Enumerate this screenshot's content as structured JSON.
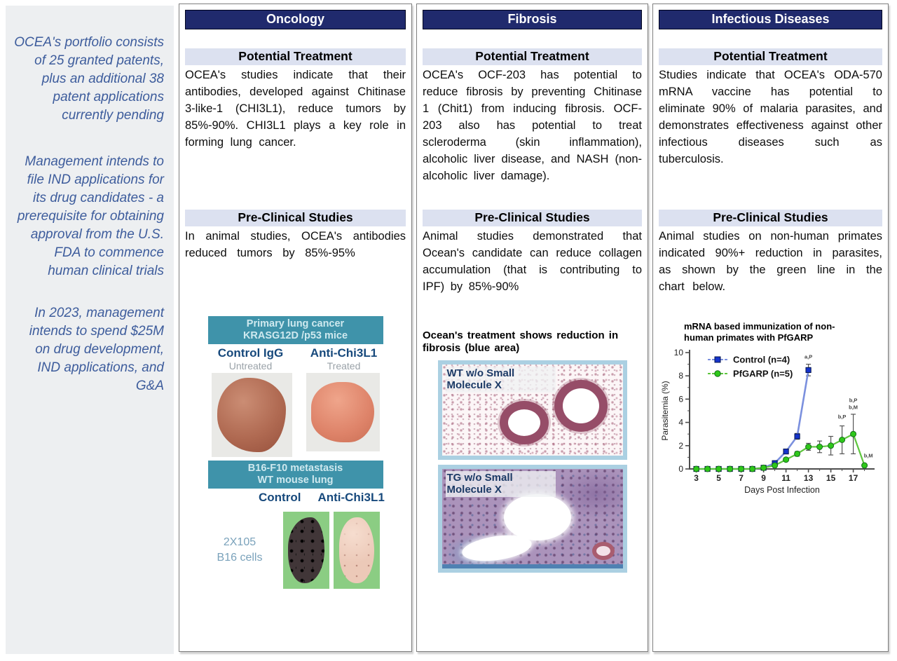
{
  "colors": {
    "navy": "#202a6d",
    "section_bar": "#dce1f0",
    "teal": "#3f93aa",
    "teal_text": "#cfe9ef",
    "label_blue": "#17497c",
    "sub_gray": "#9aa2a8",
    "sidebar_text": "#3d5c9c",
    "green_bg": "#8bcd83",
    "control_blue": "#1533cc",
    "pfgarp_green": "#2ec819"
  },
  "sidebar": {
    "notes": [
      "OCEA's portfolio consists of 25 granted patents, plus an additional 38 patent applications currently pending",
      "Management intends to file IND applications for its drug candidates - a prerequisite for obtaining approval from the U.S. FDA to commence human clinical trials",
      "In 2023, management intends to spend $25M on drug development, IND applications, and G&A"
    ]
  },
  "columns": [
    {
      "title": "Oncology",
      "pt_label": "Potential Treatment",
      "pt_text": "OCEA's studies indicate that their antibodies, developed against Chitinase 3-like-1 (CHI3L1), reduce tumors by 85%-90%. CHI3L1 plays a key role in forming lung cancer.",
      "pc_label": "Pre-Clinical Studies",
      "pc_text": "In animal studies, OCEA's antibodies reduced tumors by 85%-95%",
      "banner1_line1": "Primary lung cancer",
      "banner1_line2": "KRASG12D /p53 mice",
      "pair1_left": "Control IgG",
      "pair1_left_sub": "Untreated",
      "pair1_right": "Anti-Chi3L1",
      "pair1_right_sub": "Treated",
      "banner2_line1": "B16-F10 metastasis",
      "banner2_line2": "WT mouse lung",
      "pair2_left": "Control",
      "pair2_right": "Anti-Chi3L1",
      "cells_line1": "2X105",
      "cells_line2": "B16 cells"
    },
    {
      "title": "Fibrosis",
      "pt_label": "Potential Treatment",
      "pt_text": "OCEA's OCF-203 has potential to reduce fibrosis by preventing Chitinase 1 (Chit1) from inducing fibrosis. OCF-203 also has potential to treat scleroderma (skin inflammation), alcoholic liver disease, and NASH (non-alcoholic liver damage).",
      "pc_label": "Pre-Clinical Studies",
      "pc_text": "Animal studies demonstrated that Ocean's candidate can reduce collagen accumulation (that is contributing to IPF) by 85%-90%",
      "caption": "Ocean's treatment shows reduction in fibrosis (blue area)",
      "hist1_label": "WT w/o Small Molecule X",
      "hist2_label": "TG w/o Small Molecule X"
    },
    {
      "title": "Infectious Diseases",
      "pt_label": "Potential Treatment",
      "pt_text": "Studies indicate that OCEA's ODA-570 mRNA vaccine has potential to eliminate 90% of malaria parasites, and demonstrates effectiveness against other infectious diseases such as tuberculosis.",
      "pc_label": "Pre-Clinical Studies",
      "pc_text": "Animal studies on non-human primates indicated 90%+ reduction in parasites, as shown by the green line in the chart below."
    }
  ],
  "chart_data": {
    "type": "line",
    "title_lines": [
      "mRNA based immunization of non-",
      "human primates with PfGARP"
    ],
    "ylabel": "Parasitemia (%)",
    "xlabel": "Days Post Infection",
    "ylim": [
      0,
      10
    ],
    "xlim": [
      2.4,
      18.9
    ],
    "yticks": [
      0,
      2,
      4,
      6,
      8,
      10
    ],
    "yticks_minor": [
      1,
      3,
      5,
      7,
      9
    ],
    "xticks_labeled": [
      3,
      5,
      7,
      9,
      11,
      13,
      15,
      17
    ],
    "xticks_all": [
      3,
      4,
      5,
      6,
      7,
      8,
      9,
      10,
      11,
      12,
      13,
      14,
      15,
      16,
      17,
      18
    ],
    "grid": false,
    "legend_position": "top-left-inside",
    "series": [
      {
        "name": "Control (n=4)",
        "marker": "square",
        "color": "#1533cc",
        "line_color": "#7b90de",
        "x": [
          3,
          4,
          5,
          6,
          7,
          8,
          9,
          10,
          11,
          12,
          13
        ],
        "y": [
          0,
          0,
          0,
          0,
          0,
          0,
          0.1,
          0.5,
          1.5,
          2.8,
          8.5
        ],
        "err": [
          0,
          0,
          0,
          0,
          0,
          0,
          0,
          0,
          0.2,
          0.25,
          0.5
        ]
      },
      {
        "name": "PfGARP (n=5)",
        "marker": "circle",
        "color": "#2ec819",
        "line_color": "#5ec63e",
        "x": [
          3,
          4,
          5,
          6,
          7,
          8,
          9,
          10,
          11,
          12,
          13,
          14,
          15,
          16,
          17,
          18
        ],
        "y": [
          0,
          0,
          0,
          0,
          0,
          0,
          0.1,
          0.3,
          0.8,
          1.3,
          1.9,
          1.9,
          2.0,
          2.5,
          3.0,
          0.3
        ],
        "err": [
          0,
          0,
          0,
          0,
          0,
          0,
          0,
          0,
          0,
          0.2,
          0.3,
          0.5,
          0.8,
          1.2,
          1.7,
          0.15
        ]
      }
    ],
    "annotations": [
      {
        "x": 13,
        "y": 9.5,
        "text": "a,P"
      },
      {
        "x": 16,
        "y": 4.35,
        "text": "b,P"
      },
      {
        "x": 17,
        "y": 5.75,
        "text": "b,P"
      },
      {
        "x": 17,
        "y": 5.15,
        "text": "b,M"
      },
      {
        "x": 18.35,
        "y": 1.0,
        "text": "b,M"
      }
    ]
  }
}
